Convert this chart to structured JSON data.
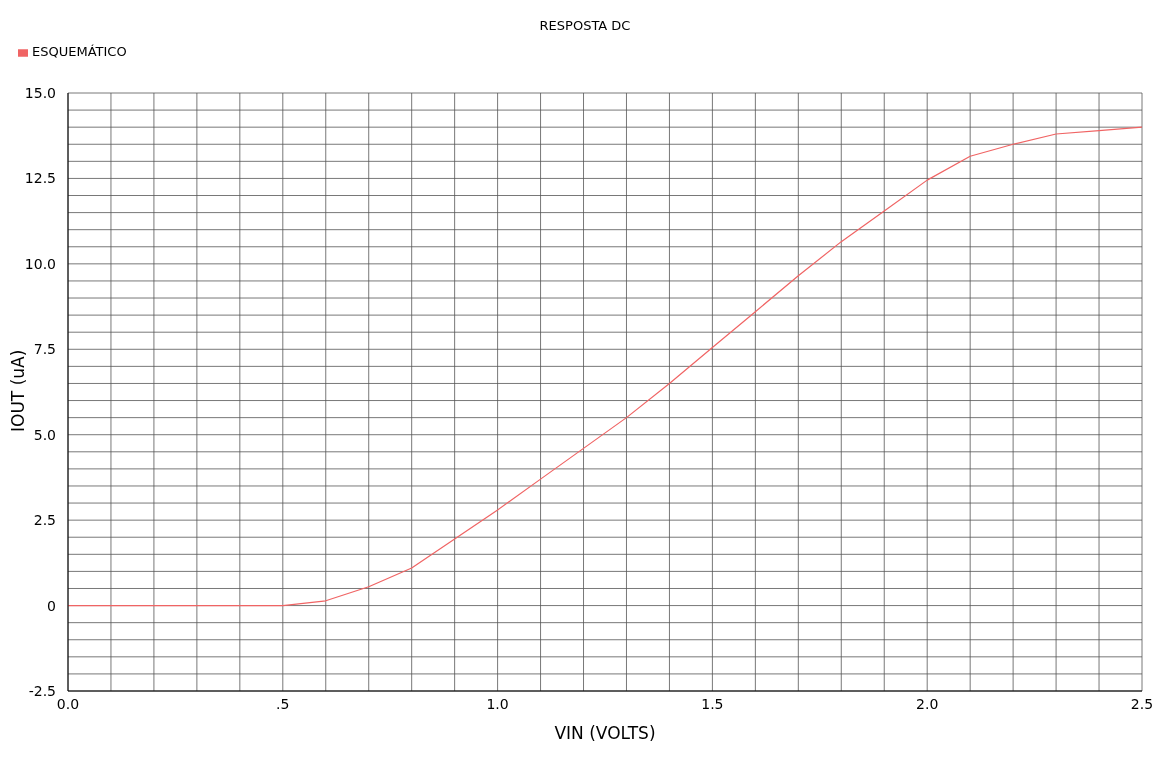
{
  "chart_data": {
    "type": "line",
    "title": "RESPOSTA DC",
    "xlabel": "VIN (VOLTS)",
    "ylabel": "IOUT  (uA)",
    "x": [
      0,
      0.1,
      0.2,
      0.3,
      0.4,
      0.5,
      0.6,
      0.7,
      0.8,
      0.9,
      1.0,
      1.1,
      1.2,
      1.3,
      1.4,
      1.5,
      1.6,
      1.7,
      1.8,
      1.9,
      2.0,
      2.1,
      2.2,
      2.3,
      2.4,
      2.5
    ],
    "series": [
      {
        "name": "ESQUEMÁTICO",
        "color": "#f06464",
        "values": [
          0,
          0,
          0,
          0,
          0,
          0,
          0.14,
          0.55,
          1.1,
          1.95,
          2.8,
          3.7,
          4.6,
          5.5,
          6.5,
          7.55,
          8.6,
          9.65,
          10.65,
          11.55,
          12.45,
          13.15,
          13.5,
          13.8,
          13.9,
          14.0
        ]
      }
    ],
    "xlim": [
      0,
      2.5
    ],
    "xticks": [
      {
        "value": 0,
        "label": "0.0"
      },
      {
        "value": 0.1,
        "label": null
      },
      {
        "value": 0.2,
        "label": null
      },
      {
        "value": 0.3,
        "label": null
      },
      {
        "value": 0.4,
        "label": null
      },
      {
        "value": 0.5,
        "label": ".5"
      },
      {
        "value": 0.6,
        "label": null
      },
      {
        "value": 0.7,
        "label": null
      },
      {
        "value": 0.8,
        "label": null
      },
      {
        "value": 0.9,
        "label": null
      },
      {
        "value": 1,
        "label": "1.0"
      },
      {
        "value": 1.1,
        "label": null
      },
      {
        "value": 1.2,
        "label": null
      },
      {
        "value": 1.3,
        "label": null
      },
      {
        "value": 1.4,
        "label": null
      },
      {
        "value": 1.5,
        "label": "1.5"
      },
      {
        "value": 1.6,
        "label": null
      },
      {
        "value": 1.7,
        "label": null
      },
      {
        "value": 1.8,
        "label": null
      },
      {
        "value": 1.9,
        "label": null
      },
      {
        "value": 2,
        "label": "2.0"
      },
      {
        "value": 2.1,
        "label": null
      },
      {
        "value": 2.2,
        "label": null
      },
      {
        "value": 2.3,
        "label": null
      },
      {
        "value": 2.4,
        "label": null
      },
      {
        "value": 2.5,
        "label": "2.5"
      }
    ],
    "ylim": [
      -2.5,
      15
    ],
    "yticks": [
      -2.5,
      {
        "value": -2,
        "label": null
      },
      {
        "value": -1.5,
        "label": null
      },
      {
        "value": -1,
        "label": null
      },
      {
        "value": -0.5,
        "label": null
      },
      0,
      {
        "value": 0.5,
        "label": null
      },
      {
        "value": 1,
        "label": null
      },
      {
        "value": 1.5,
        "label": null
      },
      {
        "value": 2,
        "label": null
      },
      2.5,
      {
        "value": 3,
        "label": null
      },
      {
        "value": 3.5,
        "label": null
      },
      {
        "value": 4,
        "label": null
      },
      {
        "value": 4.5,
        "label": null
      },
      {
        "value": 5,
        "label": "5.0"
      },
      {
        "value": 5.5,
        "label": null
      },
      {
        "value": 6,
        "label": null
      },
      {
        "value": 6.5,
        "label": null
      },
      {
        "value": 7,
        "label": null
      },
      7.5,
      {
        "value": 8,
        "label": null
      },
      {
        "value": 8.5,
        "label": null
      },
      {
        "value": 9,
        "label": null
      },
      {
        "value": 9.5,
        "label": null
      },
      {
        "value": 10,
        "label": "10.0"
      },
      {
        "value": 10.5,
        "label": null
      },
      {
        "value": 11,
        "label": null
      },
      {
        "value": 11.5,
        "label": null
      },
      {
        "value": 12,
        "label": null
      },
      12.5,
      {
        "value": 13,
        "label": null
      },
      {
        "value": 13.5,
        "label": null
      },
      {
        "value": 14,
        "label": null
      },
      {
        "value": 14.5,
        "label": null
      },
      {
        "value": 15,
        "label": "15.0"
      }
    ],
    "grid": true,
    "legend": "top left",
    "marker": "none",
    "line_style": "solid"
  }
}
